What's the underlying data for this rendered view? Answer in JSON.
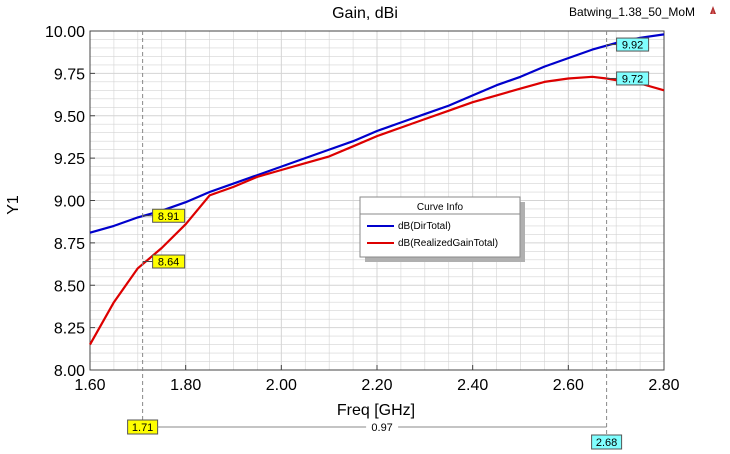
{
  "chart_data": {
    "type": "line",
    "title": "Gain, dBi",
    "design_name": "Batwing_1.38_50_MoM",
    "xlabel": "Freq [GHz]",
    "ylabel": "Y1",
    "xlim": [
      1.6,
      2.8
    ],
    "ylim": [
      8.0,
      10.0
    ],
    "x_ticks": [
      "1.60",
      "1.80",
      "2.00",
      "2.20",
      "2.40",
      "2.60",
      "2.80"
    ],
    "y_ticks": [
      "8.00",
      "8.25",
      "8.50",
      "8.75",
      "9.00",
      "9.25",
      "9.50",
      "9.75",
      "10.00"
    ],
    "grid": true,
    "legend": {
      "title": "Curve Info",
      "placement": "center-right",
      "entries": [
        "dB(DirTotal)",
        "dB(RealizedGainTotal)"
      ]
    },
    "series": [
      {
        "name": "dB(DirTotal)",
        "color": "#0000cc",
        "x": [
          1.6,
          1.65,
          1.7,
          1.75,
          1.8,
          1.85,
          1.9,
          1.95,
          2.0,
          2.05,
          2.1,
          2.15,
          2.2,
          2.25,
          2.3,
          2.35,
          2.4,
          2.45,
          2.5,
          2.55,
          2.6,
          2.65,
          2.7,
          2.75,
          2.8
        ],
        "y": [
          8.81,
          8.85,
          8.9,
          8.94,
          8.99,
          9.05,
          9.1,
          9.15,
          9.2,
          9.25,
          9.3,
          9.35,
          9.41,
          9.46,
          9.51,
          9.56,
          9.62,
          9.68,
          9.73,
          9.79,
          9.84,
          9.89,
          9.93,
          9.96,
          9.98
        ]
      },
      {
        "name": "dB(RealizedGainTotal)",
        "color": "#dd0000",
        "x": [
          1.6,
          1.65,
          1.7,
          1.75,
          1.8,
          1.85,
          1.9,
          1.95,
          2.0,
          2.05,
          2.1,
          2.15,
          2.2,
          2.25,
          2.3,
          2.35,
          2.4,
          2.45,
          2.5,
          2.55,
          2.6,
          2.65,
          2.68,
          2.7,
          2.75,
          2.8
        ],
        "y": [
          8.15,
          8.4,
          8.6,
          8.72,
          8.86,
          9.03,
          9.08,
          9.14,
          9.18,
          9.22,
          9.26,
          9.32,
          9.38,
          9.43,
          9.48,
          9.53,
          9.58,
          9.62,
          9.66,
          9.7,
          9.72,
          9.73,
          9.72,
          9.71,
          9.69,
          9.65
        ]
      }
    ],
    "markers": [
      {
        "x": 1.71,
        "x_label": "1.71",
        "labels": [
          {
            "y": 8.91,
            "text": "8.91",
            "color": "#ffff00"
          },
          {
            "y": 8.64,
            "text": "8.64",
            "color": "#ffff00"
          }
        ]
      },
      {
        "x": 2.68,
        "x_label": "2.68",
        "labels": [
          {
            "y": 9.92,
            "text": "9.92",
            "color": "#80ffff"
          },
          {
            "y": 9.72,
            "text": "9.72",
            "color": "#80ffff"
          }
        ]
      }
    ],
    "delta_label": "0.97",
    "colors": {
      "grid": "#d4d4d4",
      "background": "#ffffff",
      "marker_yellow": "#ffff00",
      "marker_cyan": "#80ffff"
    }
  }
}
